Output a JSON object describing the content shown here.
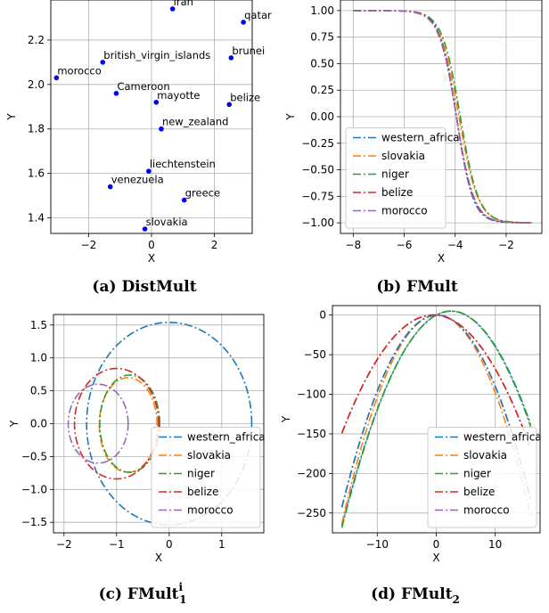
{
  "panels": [
    {
      "caption": "(a) DistMult",
      "chart_data": {
        "type": "scatter",
        "xlabel": "X",
        "ylabel": "Y",
        "xlim": [
          -3.2,
          3.2
        ],
        "ylim": [
          1.33,
          2.38
        ],
        "xticks": [
          -2,
          0,
          2
        ],
        "xtick_labels": [
          "−2",
          "0",
          "2"
        ],
        "yticks": [
          1.4,
          1.6,
          1.8,
          2.0,
          2.2
        ],
        "ytick_labels": [
          "1.4",
          "1.6",
          "1.8",
          "2.0",
          "2.2"
        ],
        "grid": true,
        "color": "#0000ff",
        "points": [
          {
            "label": "iran",
            "x": 0.67,
            "y": 2.34
          },
          {
            "label": "qatar",
            "x": 2.92,
            "y": 2.28
          },
          {
            "label": "brunei",
            "x": 2.53,
            "y": 2.12
          },
          {
            "label": "british_virgin_islands",
            "x": -1.55,
            "y": 2.1
          },
          {
            "label": "morocco",
            "x": -3.02,
            "y": 2.03
          },
          {
            "label": "Cameroon",
            "x": -1.12,
            "y": 1.96
          },
          {
            "label": "mayotte",
            "x": 0.15,
            "y": 1.92
          },
          {
            "label": "belize",
            "x": 2.47,
            "y": 1.91
          },
          {
            "label": "new_zealand",
            "x": 0.31,
            "y": 1.8
          },
          {
            "label": "liechtenstein",
            "x": -0.09,
            "y": 1.61
          },
          {
            "label": "venezuela",
            "x": -1.31,
            "y": 1.54
          },
          {
            "label": "greece",
            "x": 1.04,
            "y": 1.48
          },
          {
            "label": "slovakia",
            "x": -0.21,
            "y": 1.35
          }
        ]
      }
    },
    {
      "caption": "(b) FMult",
      "chart_data": {
        "type": "line",
        "xlabel": "X",
        "ylabel": "Y",
        "xlim": [
          -8.5,
          -0.6
        ],
        "ylim": [
          -1.1,
          1.1
        ],
        "xticks": [
          -8,
          -6,
          -4,
          -2
        ],
        "xtick_labels": [
          "−8",
          "−6",
          "−4",
          "−2"
        ],
        "yticks": [
          1.0,
          0.75,
          0.5,
          0.25,
          0.0,
          -0.25,
          -0.5,
          -0.75,
          -1.0
        ],
        "ytick_labels": [
          "1.00",
          "0.75",
          "0.50",
          "0.25",
          "0.00",
          "−0.25",
          "−0.50",
          "−0.75",
          "−1.00"
        ],
        "grid": true,
        "legend": "bottom-left",
        "x_range": [
          -8.0,
          -1.0
        ],
        "function": "y = -tanh(k * (x - c))",
        "series": [
          {
            "name": "western_africa",
            "color": "#1f77b4",
            "c": -3.95,
            "k": 1.55
          },
          {
            "name": "slovakia",
            "color": "#ff7f0e",
            "c": -3.85,
            "k": 1.35
          },
          {
            "name": "niger",
            "color": "#2ca02c",
            "c": -3.8,
            "k": 1.4
          },
          {
            "name": "belize",
            "color": "#d62728",
            "c": -3.95,
            "k": 1.5
          },
          {
            "name": "morocco",
            "color": "#9467bd",
            "c": -3.95,
            "k": 1.45
          }
        ]
      }
    },
    {
      "caption": "(c) FMult",
      "caption_sup": "i",
      "caption_sub": "1",
      "chart_data": {
        "type": "line",
        "xlabel": "X",
        "ylabel": "Y",
        "xlim": [
          -2.2,
          1.8
        ],
        "ylim": [
          -1.66,
          1.66
        ],
        "xticks": [
          -2,
          -1,
          0,
          1
        ],
        "xtick_labels": [
          "−2",
          "−1",
          "0",
          "1"
        ],
        "yticks": [
          1.5,
          1.0,
          0.5,
          0.0,
          -0.5,
          -1.0,
          -1.5
        ],
        "ytick_labels": [
          "1.5",
          "1.0",
          "0.5",
          "0.0",
          "−0.5",
          "−1.0",
          "−1.5"
        ],
        "grid": true,
        "legend": "bottom-right",
        "shape": "closed curves (ellipses: center cx, cy; radii rx, ry)",
        "series": [
          {
            "name": "western_africa",
            "color": "#1f77b4",
            "cx": 0.0,
            "cy": 0.0,
            "rx": 1.57,
            "ry": 1.54
          },
          {
            "name": "slovakia",
            "color": "#ff7f0e",
            "cx": -0.78,
            "cy": -0.02,
            "rx": 0.55,
            "ry": 0.72
          },
          {
            "name": "niger",
            "color": "#2ca02c",
            "cx": -0.75,
            "cy": 0.0,
            "rx": 0.57,
            "ry": 0.74
          },
          {
            "name": "belize",
            "color": "#d62728",
            "cx": -1.0,
            "cy": 0.0,
            "rx": 0.8,
            "ry": 0.84
          },
          {
            "name": "morocco",
            "color": "#9467bd",
            "cx": -1.35,
            "cy": 0.0,
            "rx": 0.57,
            "ry": 0.6
          }
        ]
      }
    },
    {
      "caption": "(d) FMult",
      "caption_sub": "2",
      "chart_data": {
        "type": "line",
        "xlabel": "X",
        "ylabel": "Y",
        "xlim": [
          -17.6,
          17.6
        ],
        "ylim": [
          -275,
          12
        ],
        "xticks": [
          -10,
          0,
          10
        ],
        "xtick_labels": [
          "−10",
          "0",
          "10"
        ],
        "yticks": [
          0,
          -50,
          -100,
          -150,
          -200,
          -250
        ],
        "ytick_labels": [
          "0",
          "−50",
          "−100",
          "−150",
          "−200",
          "−250"
        ],
        "grid": true,
        "legend": "bottom-right",
        "x_range": [
          -16,
          16
        ],
        "function": "y = -a * x^2 + b * x (each series)",
        "series": [
          {
            "name": "western_africa",
            "color": "#1f77b4",
            "a": 0.79,
            "b": 4.0
          },
          {
            "name": "slovakia",
            "color": "#ff7f0e",
            "a": 1.01,
            "b": 0.3
          },
          {
            "name": "niger",
            "color": "#2ca02c",
            "a": 0.8,
            "b": 4.0
          },
          {
            "name": "belize",
            "color": "#d62728",
            "a": 0.62,
            "b": -0.6
          },
          {
            "name": "morocco",
            "color": "#9467bd",
            "a": 0.93,
            "b": 0.3
          },
          {
            "name": "",
            "color": "#1f77b4",
            "a": 0.93,
            "b": 0.3
          },
          {
            "name": "",
            "color": "#d62728",
            "a": 0.62,
            "b": -0.6
          }
        ]
      }
    }
  ]
}
